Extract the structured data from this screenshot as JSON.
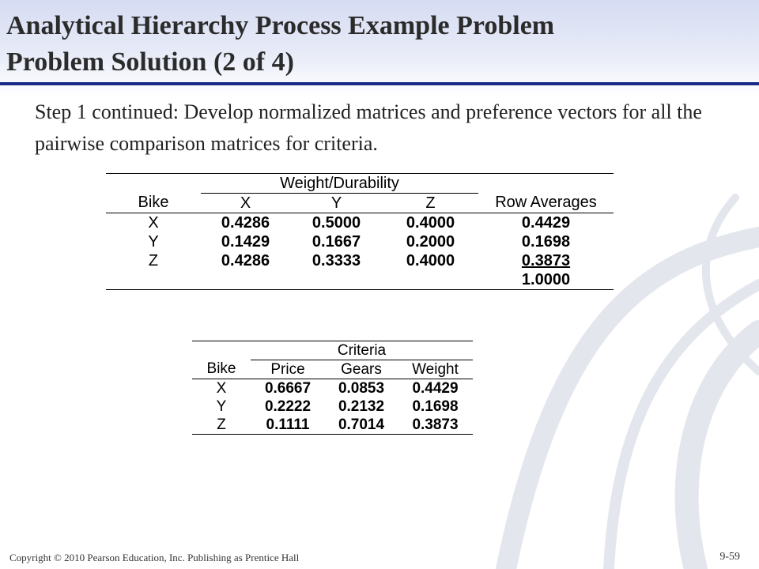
{
  "slide": {
    "title_line1": "Analytical Hierarchy Process Example Problem",
    "title_line2": "Problem Solution (2 of 4)",
    "subtitle": "Step 1 continued:  Develop normalized matrices and preference vectors for all the pairwise comparison matrices for criteria."
  },
  "table_weight": {
    "group_header": "Weight/Durability",
    "col_bike": "Bike",
    "col_x": "X",
    "col_y": "Y",
    "col_z": "Z",
    "col_avg": "Row Averages",
    "rows": [
      {
        "bike": "X",
        "x": "0.4286",
        "y": "0.5000",
        "z": "0.4000",
        "avg": "0.4429"
      },
      {
        "bike": "Y",
        "x": "0.1429",
        "y": "0.1667",
        "z": "0.2000",
        "avg": "0.1698"
      },
      {
        "bike": "Z",
        "x": "0.4286",
        "y": "0.3333",
        "z": "0.4000",
        "avg": "0.3873"
      }
    ],
    "total": "1.0000"
  },
  "table_criteria": {
    "group_header": "Criteria",
    "col_bike": "Bike",
    "col_price": "Price",
    "col_gears": "Gears",
    "col_weight": "Weight",
    "rows": [
      {
        "bike": "X",
        "price": "0.6667",
        "gears": "0.0853",
        "weight": "0.4429"
      },
      {
        "bike": "Y",
        "price": "0.2222",
        "gears": "0.2132",
        "weight": "0.1698"
      },
      {
        "bike": "Z",
        "price": "0.1111",
        "gears": "0.7014",
        "weight": "0.3873"
      }
    ]
  },
  "footer": {
    "copyright": "Copyright © 2010 Pearson Education, Inc. Publishing as Prentice Hall",
    "page": "9-59"
  }
}
